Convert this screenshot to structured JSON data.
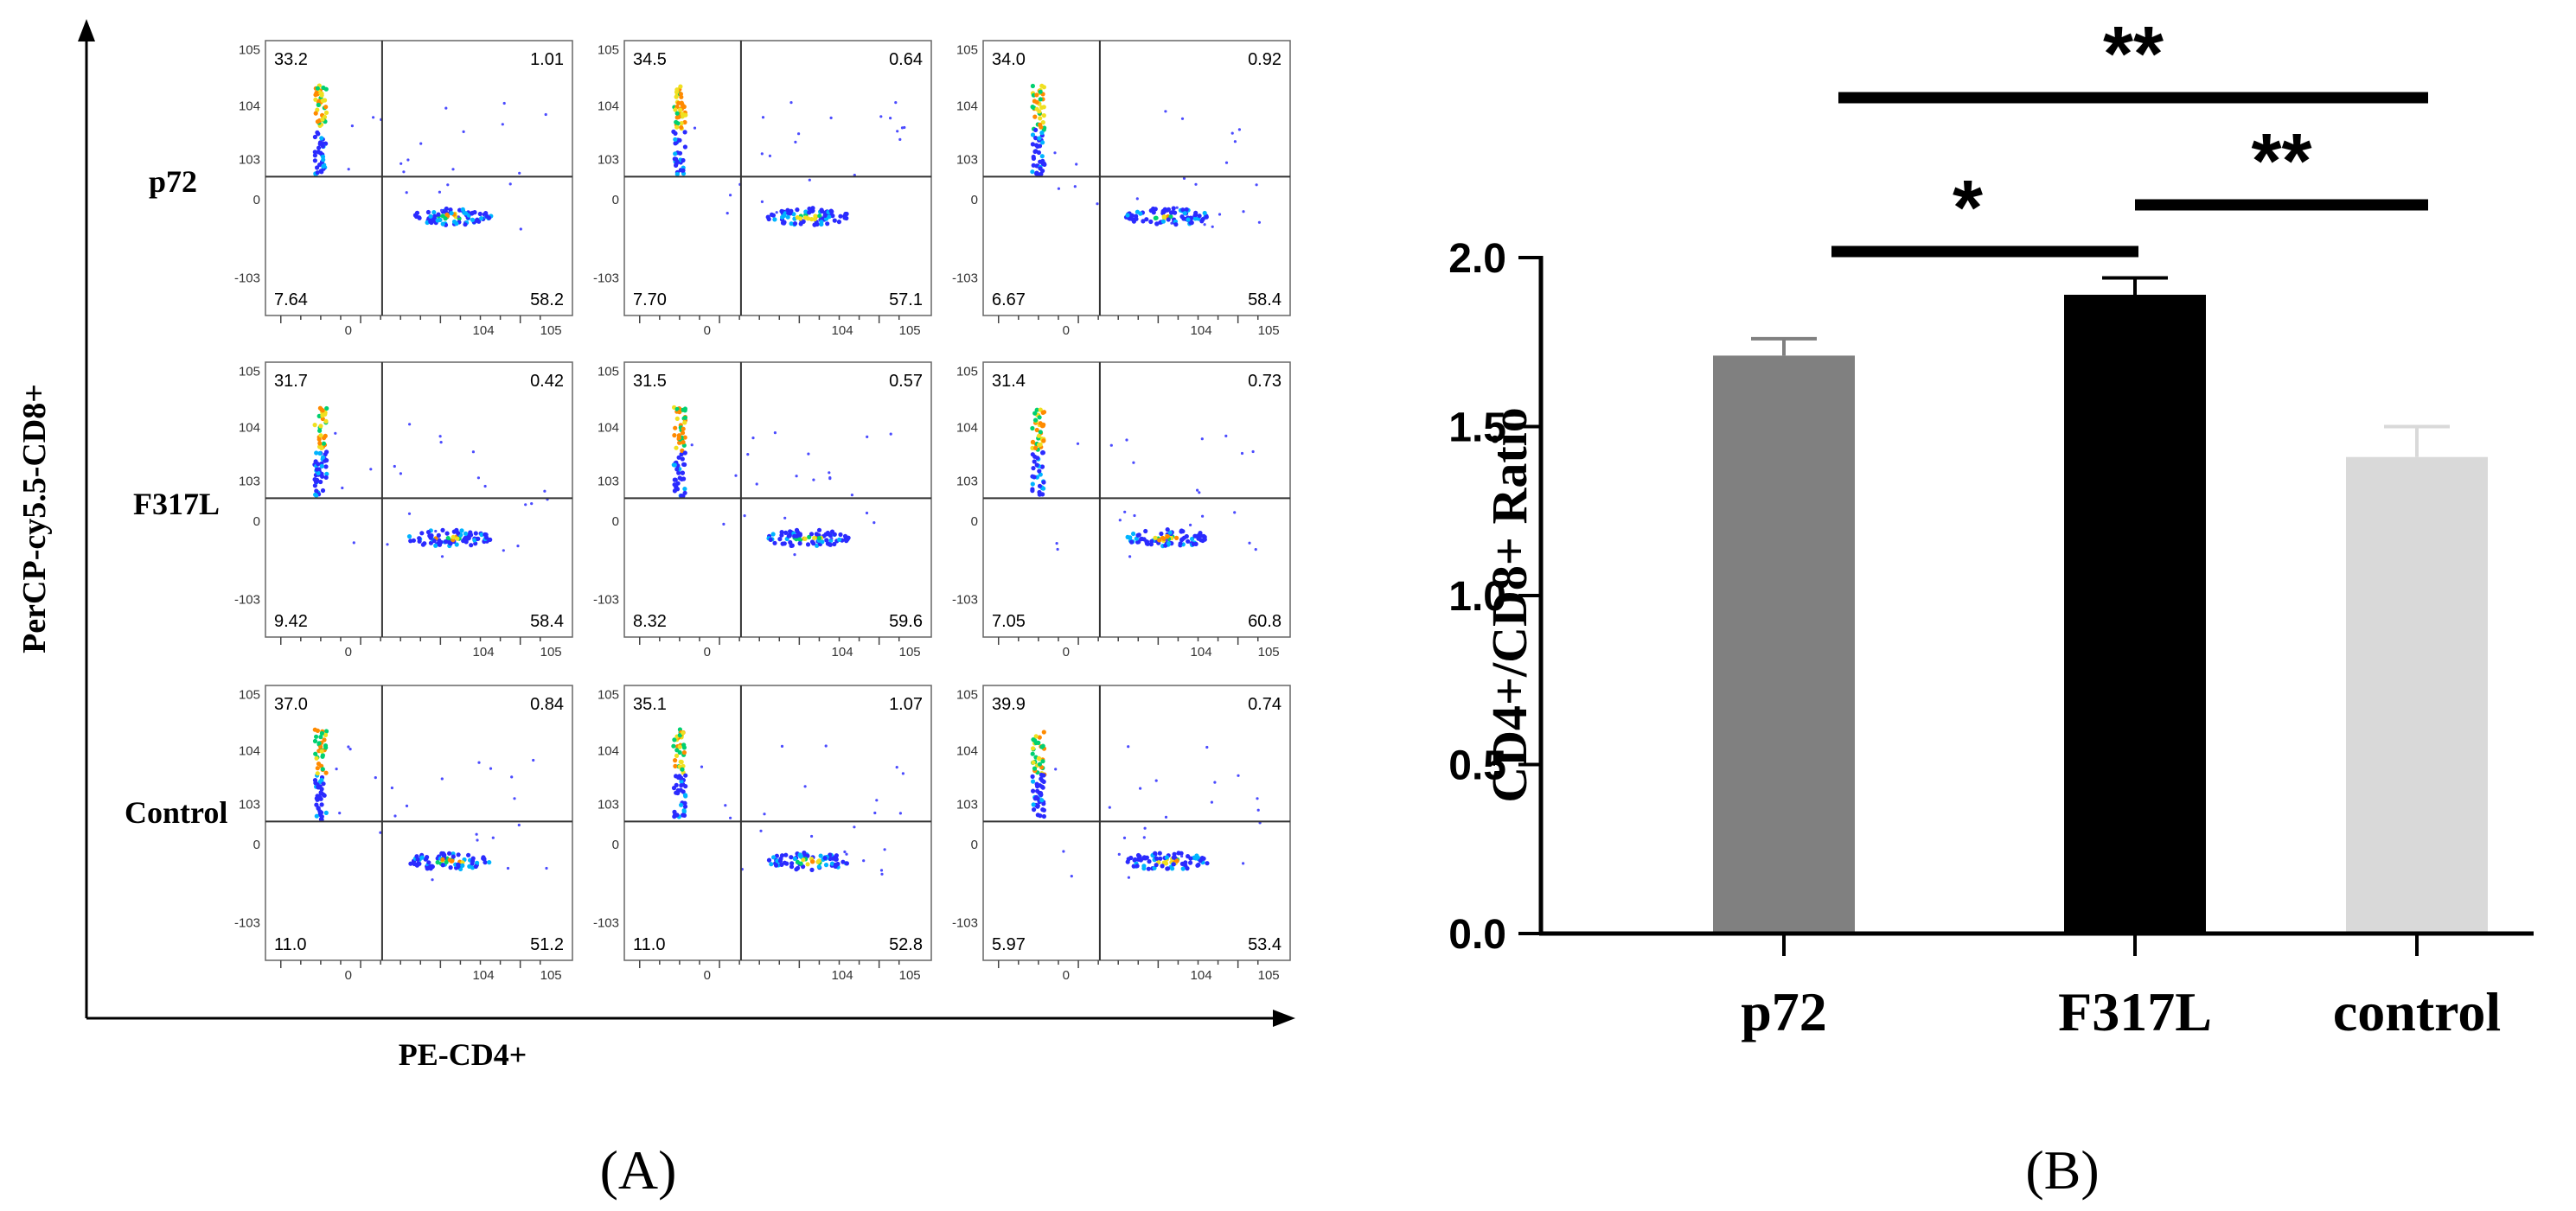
{
  "panel_a": {
    "label": "(A)",
    "y_axis_label": "PerCP-cy5.5-CD8+",
    "x_axis_label": "PE-CD4+",
    "row_labels": [
      "p72",
      "F317L",
      "Control"
    ],
    "tick_labels": {
      "y": [
        "10^5",
        "10^4",
        "10^3",
        "0",
        "-10^3"
      ],
      "x": [
        "0",
        "10^4",
        "10^5"
      ]
    },
    "plots": [
      {
        "row": 0,
        "col": 0,
        "q_ul": "33.2",
        "q_ur": "1.01",
        "q_ll": "7.64",
        "q_lr": "58.2"
      },
      {
        "row": 0,
        "col": 1,
        "q_ul": "34.5",
        "q_ur": "0.64",
        "q_ll": "7.70",
        "q_lr": "57.1"
      },
      {
        "row": 0,
        "col": 2,
        "q_ul": "34.0",
        "q_ur": "0.92",
        "q_ll": "6.67",
        "q_lr": "58.4"
      },
      {
        "row": 1,
        "col": 0,
        "q_ul": "31.7",
        "q_ur": "0.42",
        "q_ll": "9.42",
        "q_lr": "58.4"
      },
      {
        "row": 1,
        "col": 1,
        "q_ul": "31.5",
        "q_ur": "0.57",
        "q_ll": "8.32",
        "q_lr": "59.6"
      },
      {
        "row": 1,
        "col": 2,
        "q_ul": "31.4",
        "q_ur": "0.73",
        "q_ll": "7.05",
        "q_lr": "60.8"
      },
      {
        "row": 2,
        "col": 0,
        "q_ul": "37.0",
        "q_ur": "0.84",
        "q_ll": "11.0",
        "q_lr": "51.2"
      },
      {
        "row": 2,
        "col": 1,
        "q_ul": "35.1",
        "q_ur": "1.07",
        "q_ll": "11.0",
        "q_lr": "52.8"
      },
      {
        "row": 2,
        "col": 2,
        "q_ul": "39.9",
        "q_ur": "0.74",
        "q_ll": "5.97",
        "q_lr": "53.4"
      }
    ]
  },
  "chart_data": {
    "type": "bar",
    "panel_label": "(B)",
    "categories": [
      "p72",
      "F317L",
      "control"
    ],
    "values": [
      1.71,
      1.89,
      1.41
    ],
    "errors": [
      0.05,
      0.05,
      0.09
    ],
    "colors": [
      "#808080",
      "#000000",
      "#d9d9d9"
    ],
    "ylabel": "CD4+/CD8+ Ratio",
    "ylim": [
      0,
      2.0
    ],
    "yticks": [
      "0.0",
      "0.5",
      "1.0",
      "1.5",
      "2.0"
    ],
    "grid": false,
    "significance": [
      {
        "from": 0,
        "to": 1,
        "label": "*"
      },
      {
        "from": 1,
        "to": 2,
        "label": "**"
      },
      {
        "from": 0,
        "to": 2,
        "label": "**"
      }
    ]
  }
}
